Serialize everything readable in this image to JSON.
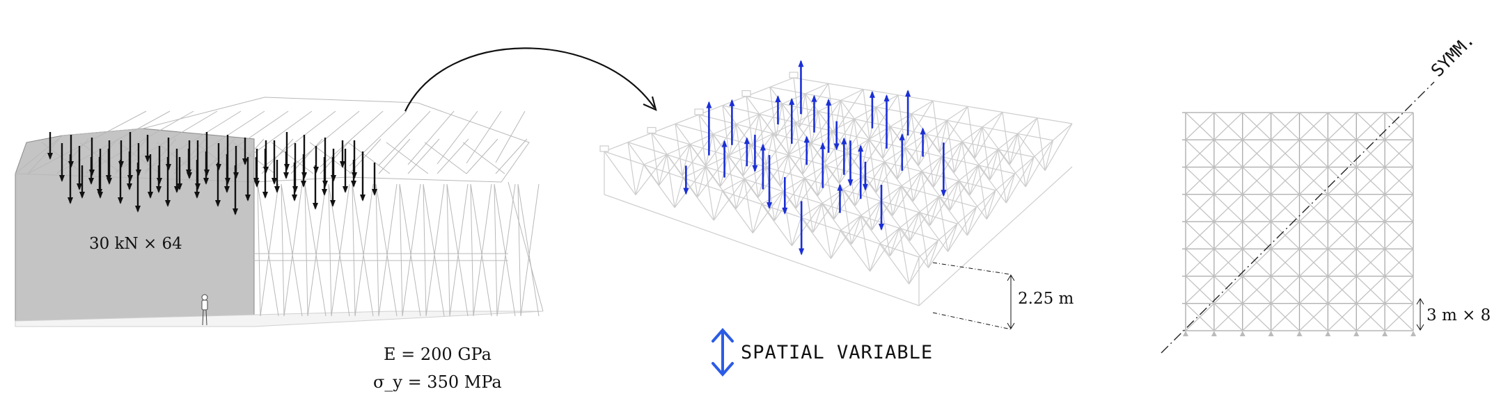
{
  "panels": {
    "hangar": {
      "load_label": "30 kN × 64",
      "material": {
        "modulus": "E = 200 GPa",
        "yield": "σ_y = 350 MPa"
      }
    },
    "truss_3d": {
      "depth_label": "2.25 m",
      "legend_text": "SPATIAL VARIABLE"
    },
    "plan": {
      "symmetry_label": "SYMM.",
      "spacing_label": "3 m × 8"
    }
  },
  "colors": {
    "load_arrow": "#111111",
    "variable_arrow": "#1a2fd6",
    "legend_arrow": "#2b5ce6",
    "wall_fill": "#bdbdbd",
    "truss_line": "#c8c8c8",
    "plan_line": "#9a9a9a"
  },
  "icons": {
    "transfer_arrow": "curved-arrow-icon",
    "legend_arrow": "double-headed-arrow-icon"
  }
}
